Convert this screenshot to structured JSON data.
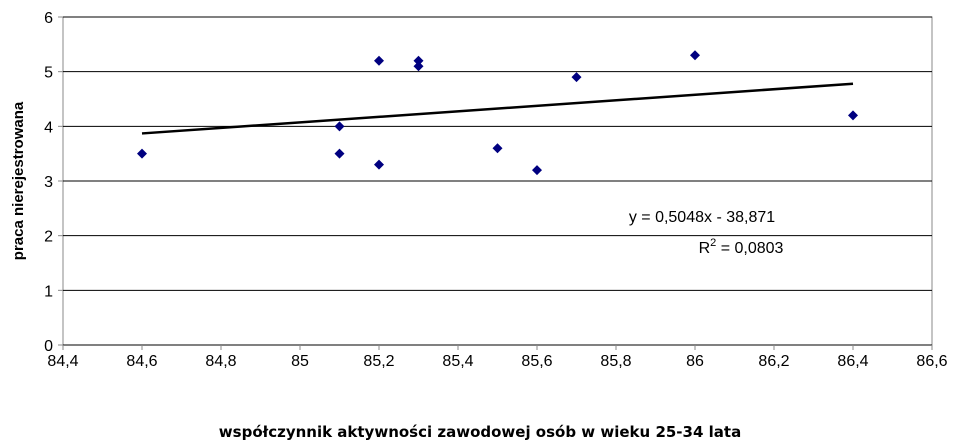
{
  "chart_data": {
    "type": "scatter",
    "x_label": "współczynnik aktywności zawodowej osób w wieku 25-34 lata",
    "y_label": "praca nierejestrowana",
    "x": [
      84.6,
      85.1,
      85.1,
      85.2,
      85.2,
      85.3,
      85.3,
      85.5,
      85.6,
      85.7,
      86.0,
      86.4
    ],
    "series": [
      {
        "color": "#000080",
        "values": [
          3.5,
          4.0,
          3.5,
          5.2,
          3.3,
          5.2,
          5.1,
          3.6,
          3.2,
          4.9,
          5.3,
          4.2
        ]
      }
    ],
    "trendline": {
      "color": "#000000",
      "x": [
        84.6,
        86.4
      ],
      "values": [
        3.87,
        4.78
      ],
      "equation": "y = 0,5048x - 38,871",
      "r_squared": [
        "R",
        "2",
        " = 0,0803"
      ]
    },
    "xlim": [
      84.4,
      86.6
    ],
    "xticks": [
      {
        "value": 84.4,
        "label": "84,4"
      },
      {
        "value": 84.6,
        "label": "84,6"
      },
      {
        "value": 84.8,
        "label": "84,8"
      },
      85,
      {
        "value": 85.2,
        "label": "85,2"
      },
      {
        "value": 85.4,
        "label": "85,4"
      },
      {
        "value": 85.6,
        "label": "85,6"
      },
      {
        "value": 85.8,
        "label": "85,8"
      },
      86,
      {
        "value": 86.2,
        "label": "86,2"
      },
      {
        "value": 86.4,
        "label": "86,4"
      },
      {
        "value": 86.6,
        "label": "86,6"
      }
    ],
    "ylim": [
      0,
      6
    ],
    "yticks": [
      0,
      1,
      2,
      3,
      4,
      5,
      6
    ],
    "grid": true
  }
}
